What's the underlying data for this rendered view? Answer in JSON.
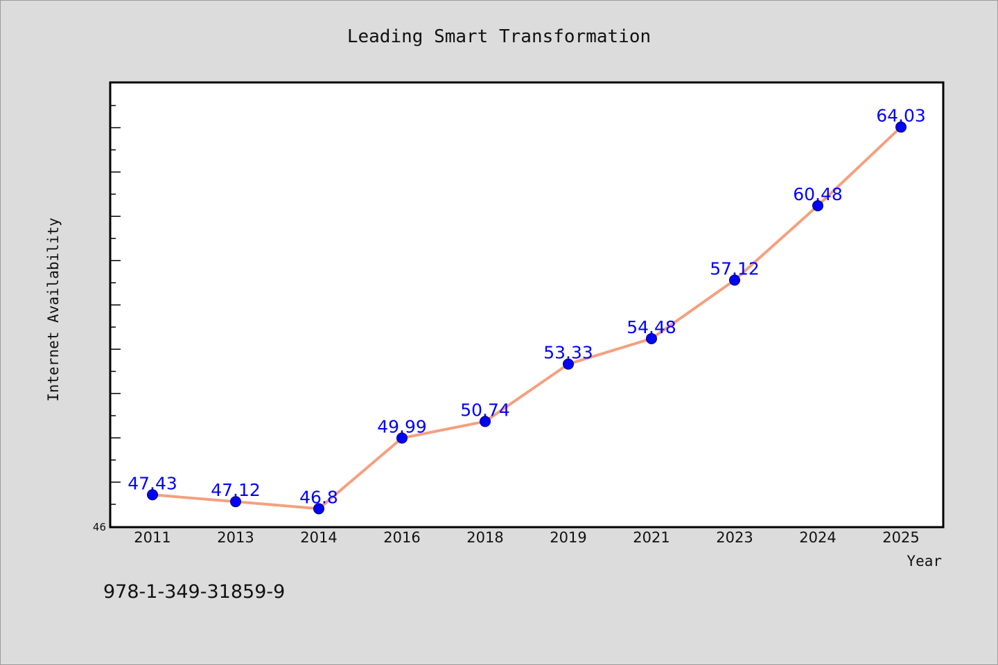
{
  "chart_data": {
    "type": "line",
    "title": "Leading Smart Transformation",
    "xlabel": "Year",
    "ylabel": "Internet Availability",
    "categories": [
      "2011",
      "2013",
      "2014",
      "2016",
      "2018",
      "2019",
      "2021",
      "2023",
      "2024",
      "2025"
    ],
    "series": [
      {
        "values": [
          47.43,
          47.12,
          46.8,
          49.99,
          50.74,
          53.33,
          54.48,
          57.12,
          60.48,
          64.03
        ],
        "labels": [
          "47.43",
          "47.12",
          "46.8",
          "49.99",
          "50.74",
          "53.33",
          "54.48",
          "57.12",
          "60.48",
          "64.03"
        ]
      }
    ],
    "ylim": [
      46,
      65
    ],
    "y_tick_labels": [
      "46"
    ],
    "grid": false,
    "line_color": "#f4a07e",
    "marker_color": "#0000ff",
    "label_color": "#0000ff"
  },
  "footer": {
    "isbn": "978-1-349-31859-9"
  }
}
